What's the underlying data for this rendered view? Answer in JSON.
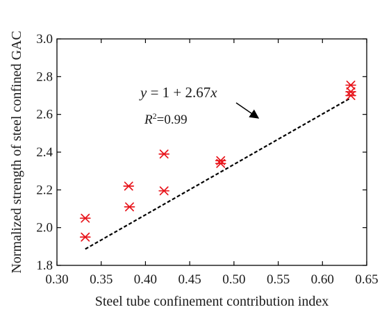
{
  "chart_data": {
    "type": "scatter",
    "xlabel": "Steel tube confinement contribution index",
    "ylabel": "Normalized strength of steel confined GAC",
    "xlim": [
      0.3,
      0.65
    ],
    "ylim": [
      1.8,
      3.0
    ],
    "xticks": [
      "0.30",
      "0.35",
      "0.40",
      "0.45",
      "0.50",
      "0.55",
      "0.60",
      "0.65"
    ],
    "yticks": [
      "1.8",
      "2.0",
      "2.2",
      "2.4",
      "2.6",
      "2.8",
      "3.0"
    ],
    "grid": false,
    "marker_color": "#e8141b",
    "fit_color": "#000000",
    "points": [
      {
        "x": 0.332,
        "y": 2.05
      },
      {
        "x": 0.332,
        "y": 1.95
      },
      {
        "x": 0.381,
        "y": 2.22
      },
      {
        "x": 0.382,
        "y": 2.11
      },
      {
        "x": 0.421,
        "y": 2.39
      },
      {
        "x": 0.421,
        "y": 2.195
      },
      {
        "x": 0.485,
        "y": 2.355
      },
      {
        "x": 0.485,
        "y": 2.34
      },
      {
        "x": 0.632,
        "y": 2.755
      },
      {
        "x": 0.632,
        "y": 2.72
      },
      {
        "x": 0.632,
        "y": 2.7
      }
    ],
    "fit": {
      "intercept": 1,
      "slope": 2.67,
      "x_range": [
        0.332,
        0.632
      ],
      "equation_parts": [
        "y",
        " = 1 + 2.67",
        "x"
      ],
      "r2_prefix": "R",
      "r2_sup": "2",
      "r2_value": "=0.99"
    }
  }
}
